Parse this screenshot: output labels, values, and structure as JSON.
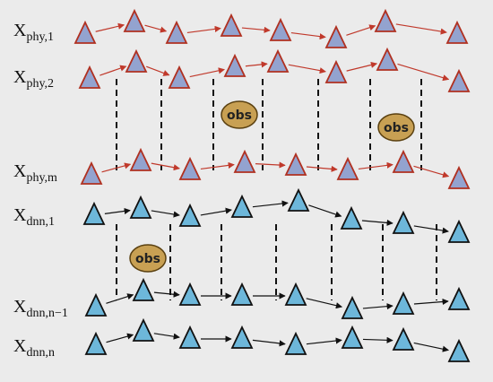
{
  "labels": [
    {
      "base": "X",
      "sub": "phy,1"
    },
    {
      "base": "X",
      "sub": "phy,2"
    },
    {
      "base": "X",
      "sub": "phy,m"
    },
    {
      "base": "X",
      "sub": "dnn,1"
    },
    {
      "base": "X",
      "sub": "dnn,n−1"
    },
    {
      "base": "X",
      "sub": "dnn,n"
    }
  ],
  "obs": [
    "obs",
    "obs",
    "obs"
  ]
}
